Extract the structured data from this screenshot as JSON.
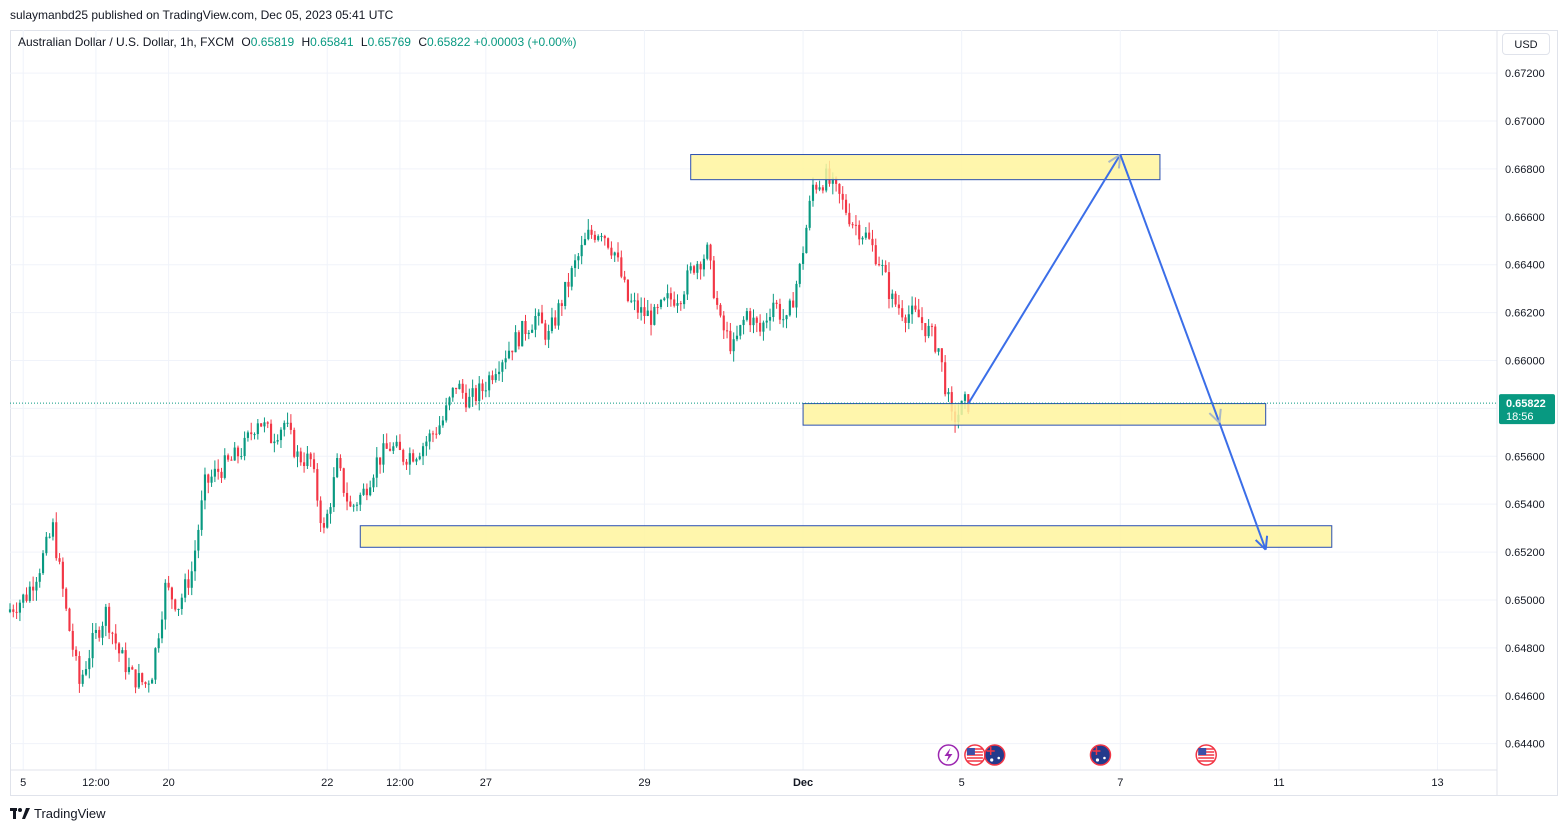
{
  "header": {
    "published_text": "sulaymanbd25 published on TradingView.com, Dec 05, 2023 05:41 UTC"
  },
  "legend": {
    "symbol": "Australian Dollar / U.S. Dollar, 1h, FXCM",
    "open_label": "O",
    "open": "0.65819",
    "high_label": "H",
    "high": "0.65841",
    "low_label": "L",
    "low": "0.65769",
    "close_label": "C",
    "close": "0.65822",
    "change": "+0.00003 (+0.00%)"
  },
  "currency_button": "USD",
  "price_tag": {
    "price": "0.65822",
    "countdown": "18:56"
  },
  "footer": {
    "brand": "TradingView"
  },
  "colors": {
    "up": "#089981",
    "down": "#f23645",
    "zone_fill": "#fff59d",
    "zone_border": "#2a4fb0",
    "arrow": "#3b6ee8",
    "price_tag": "#089981",
    "grid": "#f0f3fa"
  },
  "chart_data": {
    "type": "candlestick",
    "y_ticks": [
      "0.67200",
      "0.67000",
      "0.66800",
      "0.66600",
      "0.66400",
      "0.66200",
      "0.66000",
      "0.65800",
      "0.65600",
      "0.65400",
      "0.65200",
      "0.65000",
      "0.64800",
      "0.64600",
      "0.64400"
    ],
    "y_tick_values": [
      0.672,
      0.67,
      0.668,
      0.666,
      0.664,
      0.662,
      0.66,
      0.658,
      0.656,
      0.654,
      0.652,
      0.65,
      0.648,
      0.646,
      0.644
    ],
    "x_ticks": [
      {
        "label": "5",
        "x": 2
      },
      {
        "label": "12:00",
        "x": 13
      },
      {
        "label": "20",
        "x": 24
      },
      {
        "label": "22",
        "x": 48
      },
      {
        "label": "12:00",
        "x": 59
      },
      {
        "label": "27",
        "x": 72
      },
      {
        "label": "29",
        "x": 96
      },
      {
        "label": "Dec",
        "x": 120
      },
      {
        "label": "5",
        "x": 144
      },
      {
        "label": "7",
        "x": 168
      },
      {
        "label": "11",
        "x": 192
      },
      {
        "label": "13",
        "x": 216
      }
    ],
    "x_tick_bold": [
      "Dec"
    ],
    "x_range": [
      0,
      225
    ],
    "ylim": [
      0.6429,
      0.6738
    ],
    "last_price": 0.65822,
    "price_path": [
      [
        0,
        0.6495
      ],
      [
        3,
        0.6502
      ],
      [
        5,
        0.6514
      ],
      [
        7,
        0.653
      ],
      [
        9,
        0.6495
      ],
      [
        11,
        0.6465
      ],
      [
        13,
        0.6482
      ],
      [
        15,
        0.6495
      ],
      [
        17,
        0.6478
      ],
      [
        19,
        0.6468
      ],
      [
        21,
        0.6465
      ],
      [
        22,
        0.647
      ],
      [
        24,
        0.6505
      ],
      [
        26,
        0.6498
      ],
      [
        28,
        0.6512
      ],
      [
        30,
        0.6548
      ],
      [
        32,
        0.6554
      ],
      [
        34,
        0.6558
      ],
      [
        36,
        0.6564
      ],
      [
        38,
        0.6576
      ],
      [
        40,
        0.6568
      ],
      [
        42,
        0.6574
      ],
      [
        44,
        0.656
      ],
      [
        46,
        0.6558
      ],
      [
        48,
        0.6528
      ],
      [
        50,
        0.6556
      ],
      [
        52,
        0.6538
      ],
      [
        54,
        0.6545
      ],
      [
        56,
        0.6558
      ],
      [
        58,
        0.6564
      ],
      [
        60,
        0.656
      ],
      [
        62,
        0.6562
      ],
      [
        64,
        0.6568
      ],
      [
        66,
        0.6575
      ],
      [
        68,
        0.659
      ],
      [
        70,
        0.6583
      ],
      [
        72,
        0.6588
      ],
      [
        74,
        0.6598
      ],
      [
        76,
        0.6605
      ],
      [
        78,
        0.6612
      ],
      [
        80,
        0.6618
      ],
      [
        82,
        0.661
      ],
      [
        84,
        0.6625
      ],
      [
        86,
        0.664
      ],
      [
        88,
        0.6652
      ],
      [
        90,
        0.6655
      ],
      [
        92,
        0.6645
      ],
      [
        94,
        0.6625
      ],
      [
        96,
        0.662
      ],
      [
        98,
        0.6618
      ],
      [
        100,
        0.6625
      ],
      [
        102,
        0.6628
      ],
      [
        104,
        0.664
      ],
      [
        106,
        0.6645
      ],
      [
        108,
        0.6615
      ],
      [
        110,
        0.6605
      ],
      [
        112,
        0.662
      ],
      [
        114,
        0.6612
      ],
      [
        116,
        0.6625
      ],
      [
        118,
        0.6615
      ],
      [
        120,
        0.6638
      ],
      [
        122,
        0.6673
      ],
      [
        124,
        0.6676
      ],
      [
        126,
        0.6668
      ],
      [
        128,
        0.6658
      ],
      [
        130,
        0.6652
      ],
      [
        132,
        0.6642
      ],
      [
        134,
        0.6625
      ],
      [
        136,
        0.662
      ],
      [
        138,
        0.6618
      ],
      [
        140,
        0.661
      ],
      [
        141,
        0.6605
      ],
      [
        142,
        0.659
      ],
      [
        143,
        0.6575
      ],
      [
        144,
        0.6578
      ],
      [
        145,
        0.6582
      ]
    ],
    "zones": [
      {
        "x_start": 103,
        "x_end": 174,
        "y_low": 0.66755,
        "y_high": 0.6686
      },
      {
        "x_start": 120,
        "x_end": 190,
        "y_low": 0.6573,
        "y_high": 0.6582
      },
      {
        "x_start": 53,
        "x_end": 200,
        "y_low": 0.6522,
        "y_high": 0.6531
      }
    ],
    "projection": [
      [
        145,
        0.6582
      ],
      [
        168,
        0.6686
      ],
      [
        183,
        0.6574
      ],
      [
        190,
        0.6521
      ]
    ],
    "event_icons": [
      {
        "x": 142,
        "type": "lightning-icon"
      },
      {
        "x": 146,
        "type": "us-flag-icon"
      },
      {
        "x": 149,
        "type": "au-flag-icon"
      },
      {
        "x": 165,
        "type": "au-flag-icon"
      },
      {
        "x": 181,
        "type": "us-flag-icon"
      }
    ]
  }
}
